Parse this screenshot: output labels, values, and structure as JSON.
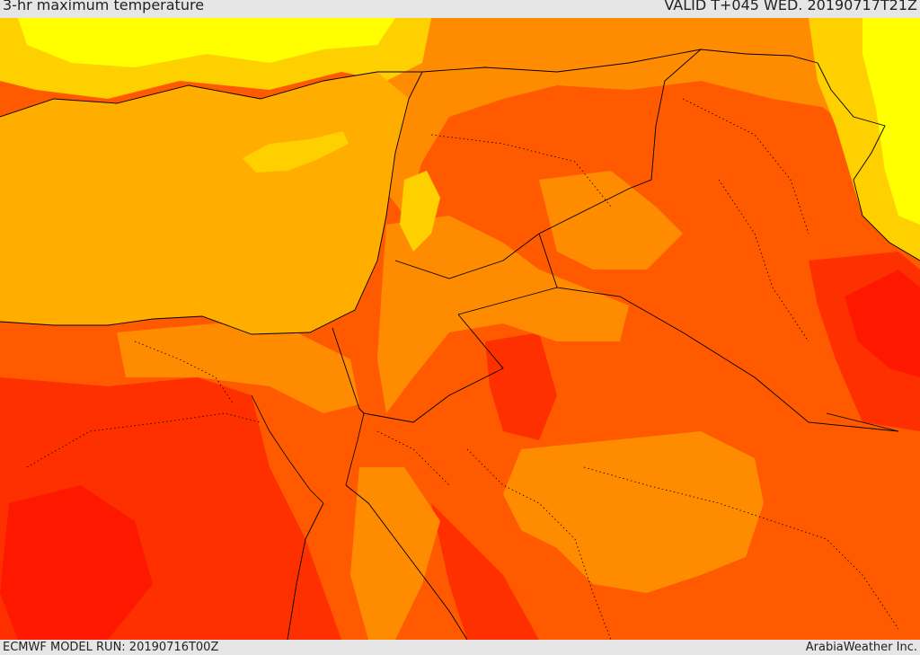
{
  "header": {
    "title": "3-hr maximum temperature",
    "valid": "VALID T+045 WED. 20190717T21Z"
  },
  "footer": {
    "model_run": "ECMWF MODEL RUN: 20190716T00Z",
    "credit": "ArabiaWeather Inc."
  },
  "palette": {
    "sea": "#ffae00",
    "cool": "#ffff00",
    "mild": "#ffd000",
    "warm": "#ff8c00",
    "hot": "#ff5a00",
    "very_hot": "#ff3000",
    "extreme": "#ff1800"
  }
}
